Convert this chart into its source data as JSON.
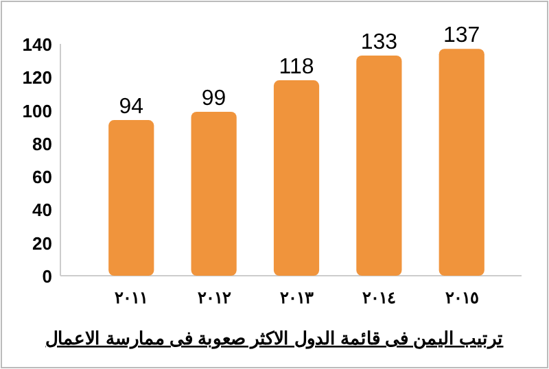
{
  "chart_data": {
    "type": "bar",
    "title": "ترتيب اليمن فى قائمة الدول الاكثر صعوبة فى ممارسة الاعمال",
    "categories": [
      "٢٠١١",
      "٢٠١٢",
      "٢٠١٣",
      "٢٠١٤",
      "٢٠١٥"
    ],
    "values": [
      94,
      99,
      118,
      133,
      137
    ],
    "color": "#f0943c",
    "ylim": [
      0,
      140
    ],
    "yticks": [
      0,
      20,
      40,
      60,
      80,
      100,
      120,
      140
    ],
    "data_labels": true,
    "grid": false
  }
}
